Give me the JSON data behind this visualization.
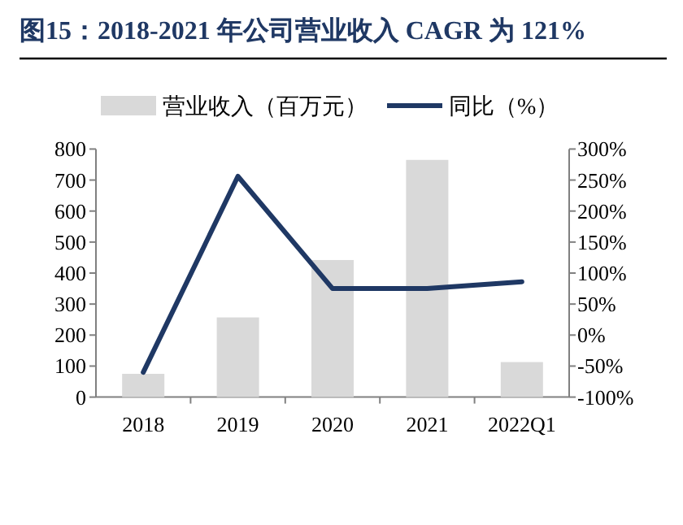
{
  "chart_data": {
    "type": "bar",
    "title": "图15：2018-2021 年公司营业收入 CAGR 为 121%",
    "categories": [
      "2018",
      "2019",
      "2020",
      "2021",
      "2022Q1"
    ],
    "series": [
      {
        "name": "营业收入（百万元）",
        "color": "#d9d9d9",
        "values": [
          75,
          257,
          442,
          765,
          113
        ]
      },
      {
        "name": "同比（%）",
        "type": "line",
        "axis": "y2",
        "color": "#1f3864",
        "values": [
          -60,
          256,
          75,
          75,
          86
        ]
      }
    ],
    "ylim": [
      0,
      800
    ],
    "yticks": [
      0,
      100,
      200,
      300,
      400,
      500,
      600,
      700,
      800
    ],
    "y2lim": [
      -100,
      300
    ],
    "y2ticks": [
      {
        "value": -100,
        "label": "-100%"
      },
      {
        "value": -50,
        "label": "-50%"
      },
      {
        "value": 0,
        "label": "0%"
      },
      {
        "value": 50,
        "label": "50%"
      },
      {
        "value": 100,
        "label": "100%"
      },
      {
        "value": 150,
        "label": "150%"
      },
      {
        "value": 200,
        "label": "200%"
      },
      {
        "value": 250,
        "label": "250%"
      },
      {
        "value": 300,
        "label": "300%"
      }
    ],
    "legend": "top",
    "grid": false,
    "marker": "none",
    "line_style": "solid"
  }
}
